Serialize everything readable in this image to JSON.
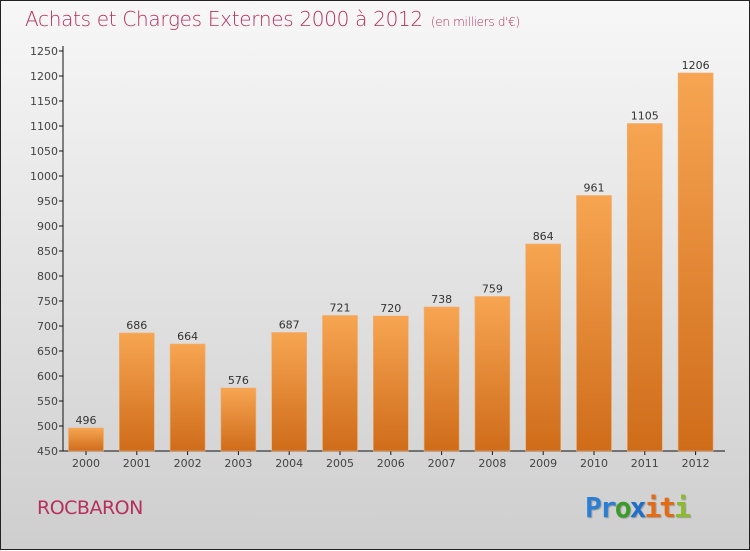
{
  "chart_data": {
    "type": "bar",
    "title": "Achats et Charges Externes 2000 à 2012",
    "subtitle": "(en milliers d'€)",
    "xlabel": "",
    "ylabel": "",
    "categories": [
      "2000",
      "2001",
      "2002",
      "2003",
      "2004",
      "2005",
      "2006",
      "2007",
      "2008",
      "2009",
      "2010",
      "2011",
      "2012"
    ],
    "values": [
      496,
      686,
      664,
      576,
      687,
      721,
      720,
      738,
      759,
      864,
      961,
      1105,
      1206
    ],
    "ylim": [
      450,
      1250
    ],
    "yticks": [
      450,
      500,
      550,
      600,
      650,
      700,
      750,
      800,
      850,
      900,
      950,
      1000,
      1050,
      1100,
      1150,
      1200,
      1250
    ],
    "grid": false,
    "legend": "none",
    "bar_color_top": "#f7a552",
    "bar_color_bottom": "#cf6c1a"
  },
  "footer": {
    "city": "ROCBARON",
    "logo": [
      {
        "ch": "P",
        "color": "#2a7fd4"
      },
      {
        "ch": "r",
        "color": "#2a7fd4"
      },
      {
        "ch": "o",
        "color": "#3a9a2a"
      },
      {
        "ch": "x",
        "color": "#1f6fc8"
      },
      {
        "ch": "i",
        "color": "#e56a12"
      },
      {
        "ch": "t",
        "color": "#e56a12"
      },
      {
        "ch": "i",
        "color": "#8dbb2a"
      }
    ]
  }
}
